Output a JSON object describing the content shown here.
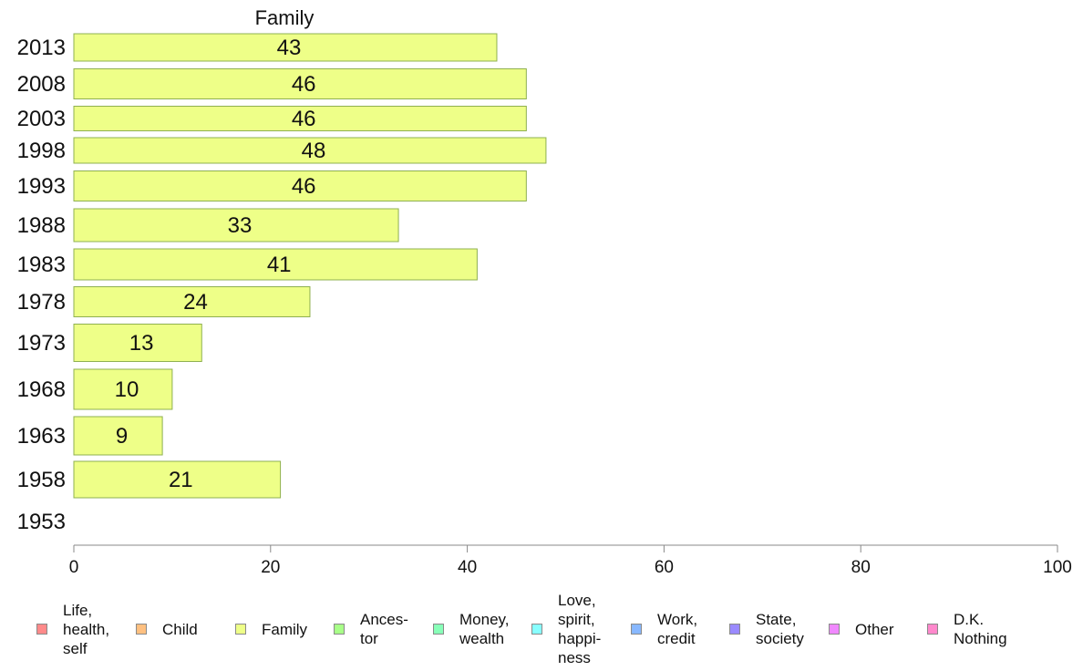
{
  "chart_data": {
    "type": "bar",
    "orientation": "horizontal",
    "title": "Family",
    "categories": [
      "2013",
      "2008",
      "2003",
      "1998",
      "1993",
      "1988",
      "1983",
      "1978",
      "1973",
      "1968",
      "1963",
      "1958",
      "1953"
    ],
    "values": [
      43,
      46,
      46,
      48,
      46,
      33,
      41,
      24,
      13,
      10,
      9,
      21,
      null
    ],
    "data_labels": [
      "43",
      "46",
      "46",
      "48",
      "46",
      "33",
      "41",
      "24",
      "13",
      "10",
      "9",
      "21",
      ""
    ],
    "xlim": [
      0,
      100
    ],
    "xticks": [
      0,
      20,
      40,
      60,
      80,
      100
    ],
    "xlabel": "",
    "ylabel": "",
    "grid": false,
    "bar_color": "#eeff88",
    "bar_border_color": "#8fb050",
    "legend_position": "bottom",
    "legend": [
      {
        "label": "Life,\nhealth,\nself",
        "color": "#ff8a8a"
      },
      {
        "label": "Child",
        "color": "#ffc080"
      },
      {
        "label": "Family",
        "color": "#eeff88"
      },
      {
        "label": "Ances-\ntor",
        "color": "#a8ff88"
      },
      {
        "label": "Money,\nwealth",
        "color": "#88ffb8"
      },
      {
        "label": "Love,\nspirit,\nhappi-\nness",
        "color": "#88ffff"
      },
      {
        "label": "Work,\ncredit",
        "color": "#88b8ff"
      },
      {
        "label": "State,\nsociety",
        "color": "#9a8aff"
      },
      {
        "label": "Other",
        "color": "#f088ff"
      },
      {
        "label": "D.K.\nNothing",
        "color": "#ff88cc"
      }
    ]
  }
}
